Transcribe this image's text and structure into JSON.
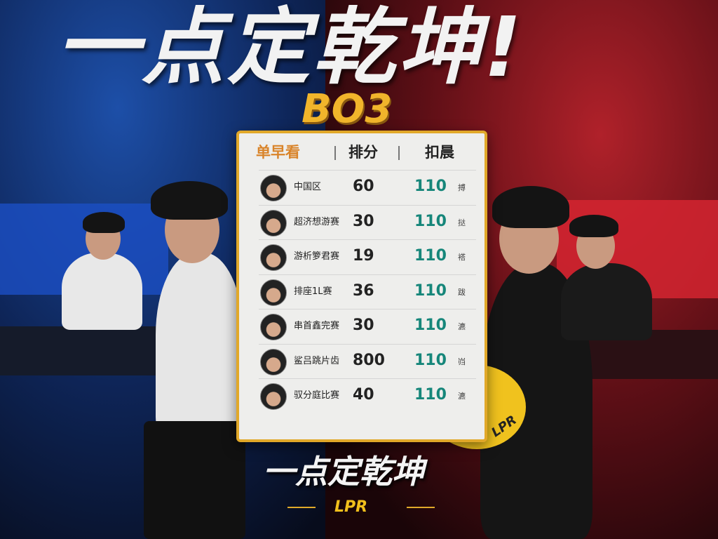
{
  "title": "一点定乾坤!",
  "badge_title": "BO3",
  "table": {
    "headers": [
      "单早看",
      "排分",
      "扣晨"
    ],
    "rows": [
      {
        "name": "中国区",
        "score": "60",
        "value": "110",
        "unit": "搏"
      },
      {
        "name": "超济想游赛",
        "score": "30",
        "value": "110",
        "unit": "挞"
      },
      {
        "name": "游析箩君赛",
        "score": "19",
        "value": "110",
        "unit": "褡"
      },
      {
        "name": "排座1L赛",
        "score": "36",
        "value": "110",
        "unit": "跋"
      },
      {
        "name": "串首鑫完赛",
        "score": "30",
        "value": "110",
        "unit": "瀌"
      },
      {
        "name": "鲨吕跳片齿",
        "score": "800",
        "value": "110",
        "unit": "岿"
      },
      {
        "name": "驭分庭比赛",
        "score": "40",
        "value": "110",
        "unit": "瀌"
      }
    ]
  },
  "subtitle": "一点定乾坤",
  "logo_text": "LPR",
  "corner_badge_text": "LPR",
  "colors": {
    "gold": "#e1a829",
    "teal": "#16867a",
    "blue_side": "#1b4fc4",
    "red_side": "#d32430"
  }
}
